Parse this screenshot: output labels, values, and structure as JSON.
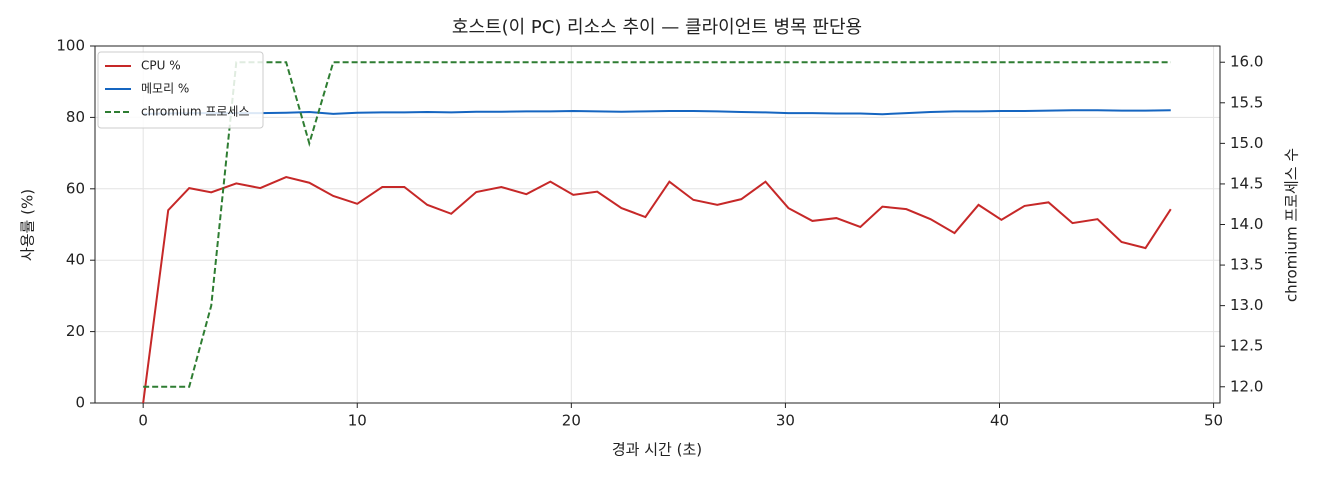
{
  "chart_data": {
    "type": "line",
    "title": "호스트(이 PC) 리소스 추이 — 클라이언트 병목 판단용",
    "x_label": "경과 시간 (초)",
    "y_label": "사용률 (%)",
    "y2_label": "chromium 프로세스 수",
    "x": [
      0,
      1.17,
      2.15,
      3.18,
      4.35,
      5.47,
      6.68,
      7.76,
      8.88,
      10.0,
      11.17,
      12.2,
      13.27,
      14.39,
      15.56,
      16.73,
      17.9,
      19.02,
      20.09,
      21.21,
      22.34,
      23.46,
      24.58,
      25.7,
      26.82,
      27.94,
      29.07,
      30.14,
      31.26,
      32.38,
      33.5,
      34.53,
      35.65,
      36.78,
      37.9,
      39.02,
      40.09,
      41.17,
      42.29,
      43.41,
      44.58,
      45.7,
      46.82,
      48.0
    ],
    "series": [
      {
        "name": "CPU %",
        "color": "#c62828",
        "dash": false,
        "values": [
          0,
          54,
          60.2,
          59,
          61.5,
          60.2,
          63.3,
          61.7,
          58,
          55.8,
          60.5,
          60.5,
          55.5,
          53,
          59.1,
          60.5,
          58.5,
          62,
          58.3,
          59.2,
          54.6,
          52.1,
          62,
          56.9,
          55.5,
          57.1,
          62,
          54.6,
          51,
          51.8,
          49.3,
          55,
          54.3,
          51.5,
          47.6,
          55.5,
          51.3,
          55.2,
          56.2,
          50.4,
          51.5,
          45.1,
          43.4,
          54.3
        ]
      },
      {
        "name": "메모리 %",
        "color": "#1565c0",
        "dash": false,
        "values": [
          81.0,
          81.1,
          81.2,
          81.2,
          81.2,
          81.2,
          81.3,
          81.5,
          81.0,
          81.3,
          81.4,
          81.4,
          81.5,
          81.4,
          81.6,
          81.6,
          81.7,
          81.7,
          81.8,
          81.7,
          81.6,
          81.7,
          81.8,
          81.8,
          81.7,
          81.5,
          81.4,
          81.2,
          81.2,
          81.1,
          81.1,
          80.9,
          81.2,
          81.5,
          81.7,
          81.7,
          81.8,
          81.8,
          81.9,
          82.0,
          82.0,
          81.9,
          81.9,
          82.0
        ]
      },
      {
        "name": "chromium 프로세스",
        "color": "#2e7d32",
        "dash": true,
        "axis": "y2",
        "values": [
          12,
          12,
          12,
          13,
          16,
          16,
          16,
          15,
          16,
          16,
          16,
          16,
          16,
          16,
          16,
          16,
          16,
          16,
          16,
          16,
          16,
          16,
          16,
          16,
          16,
          16,
          16,
          16,
          16,
          16,
          16,
          16,
          16,
          16,
          16,
          16,
          16,
          16,
          16,
          16,
          16,
          16,
          16,
          16
        ]
      }
    ],
    "xlim": [
      -2.25,
      50.3
    ],
    "xticks": [
      0,
      10,
      20,
      30,
      40,
      50
    ],
    "ylim": [
      0,
      100
    ],
    "yticks": [
      0,
      20,
      40,
      60,
      80,
      100
    ],
    "y2lim": [
      11.8,
      16.2
    ],
    "y2ticks": [
      {
        "value": 12,
        "label": "12.0"
      },
      {
        "value": 12.5,
        "label": "12.5"
      },
      {
        "value": 13,
        "label": "13.0"
      },
      {
        "value": 13.5,
        "label": "13.5"
      },
      {
        "value": 14,
        "label": "14.0"
      },
      {
        "value": 14.5,
        "label": "14.5"
      },
      {
        "value": 15,
        "label": "15.0"
      },
      {
        "value": 15.5,
        "label": "15.5"
      },
      {
        "value": 16,
        "label": "16.0"
      }
    ],
    "grid": true,
    "legend": "upper left"
  }
}
